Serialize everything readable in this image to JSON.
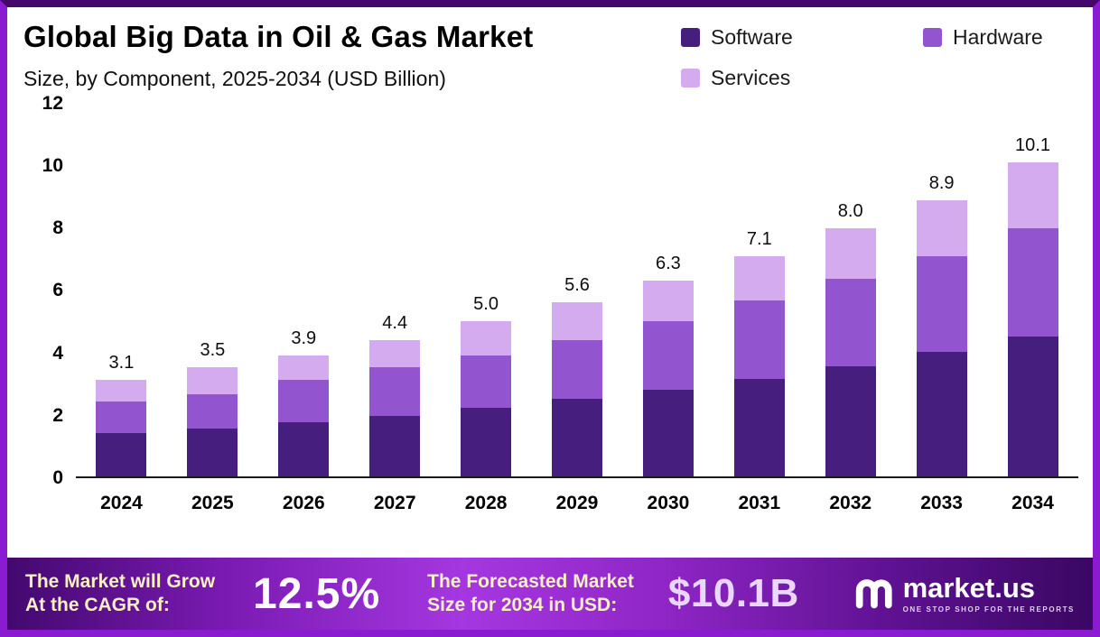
{
  "header": {
    "title": "Global Big Data in Oil & Gas Market",
    "subtitle": "Size, by Component, 2025-2034 (USD Billion)"
  },
  "chart_data": {
    "type": "bar",
    "stacked": true,
    "title": "Global Big Data in Oil & Gas Market Size, by Component, 2025-2034 (USD Billion)",
    "xlabel": "",
    "ylabel": "",
    "ylim": [
      0,
      12
    ],
    "yticks": [
      0,
      2,
      4,
      6,
      8,
      10,
      12
    ],
    "grid": false,
    "legend_position": "top-right",
    "categories": [
      "2024",
      "2025",
      "2026",
      "2027",
      "2028",
      "2029",
      "2030",
      "2031",
      "2032",
      "2033",
      "2034"
    ],
    "series": [
      {
        "name": "Software",
        "color": "#461e7d",
        "values": [
          1.4,
          1.55,
          1.75,
          1.95,
          2.2,
          2.5,
          2.8,
          3.15,
          3.55,
          4.0,
          4.5
        ]
      },
      {
        "name": "Hardware",
        "color": "#9254cf",
        "values": [
          1.0,
          1.1,
          1.35,
          1.55,
          1.7,
          1.9,
          2.2,
          2.5,
          2.8,
          3.1,
          3.5
        ]
      },
      {
        "name": "Services",
        "color": "#d3abee",
        "values": [
          0.7,
          0.85,
          0.8,
          0.9,
          1.1,
          1.2,
          1.3,
          1.45,
          1.65,
          1.8,
          2.1
        ]
      }
    ],
    "totals": [
      "3.1",
      "3.5",
      "3.9",
      "4.4",
      "5.0",
      "5.6",
      "6.3",
      "7.1",
      "8.0",
      "8.9",
      "10.1"
    ]
  },
  "banner": {
    "cagr_label_line1": "The Market will Grow",
    "cagr_label_line2": "At the CAGR of:",
    "cagr_value": "12.5%",
    "forecast_label_line1": "The Forecasted Market",
    "forecast_label_line2": "Size for 2034 in USD:",
    "forecast_value": "$10.1B",
    "brand_name": "market.us",
    "brand_tagline": "ONE STOP SHOP FOR THE REPORTS"
  },
  "colors": {
    "page_border": "#8a1bd1",
    "software": "#461e7d",
    "hardware": "#9254cf",
    "services": "#d3abee",
    "banner_label": "#faf0c4",
    "banner_value": "#ffffff"
  }
}
